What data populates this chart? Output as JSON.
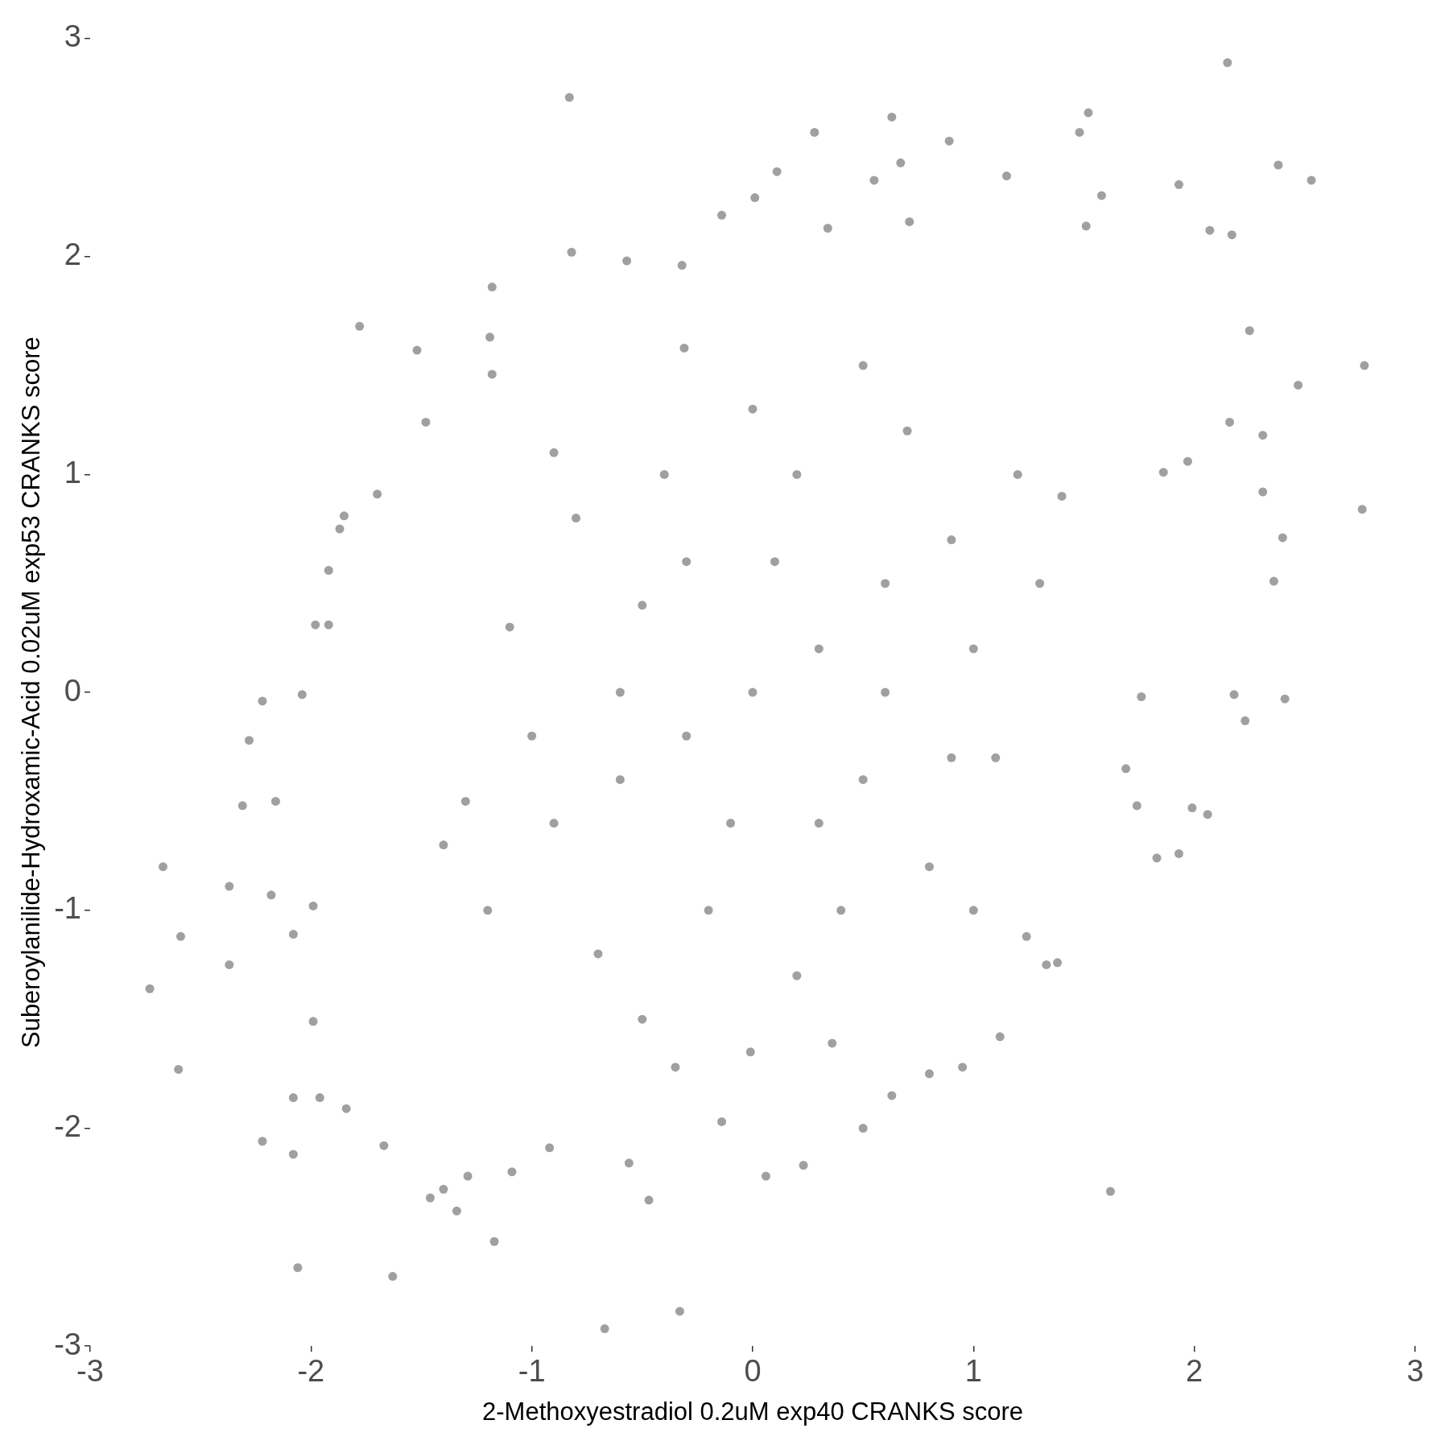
{
  "chart_data": {
    "type": "scatter",
    "xlabel": "2-Methoxyestradiol 0.2uM exp40 CRANKS score",
    "ylabel": "Suberoylanilide-Hydroxamic-Acid 0.02uM exp53 CRANKS score",
    "color": "#a0a0a0",
    "marker": "circle",
    "grid": false,
    "legend": false,
    "xlim": [
      -3,
      3
    ],
    "ylim": [
      -3,
      3
    ],
    "xticks": [
      -3,
      -2,
      -1,
      0,
      1,
      2,
      3
    ],
    "yticks": [
      -3,
      -2,
      -1,
      0,
      1,
      2,
      3
    ],
    "x": [
      2.15,
      -0.83,
      0.63,
      1.52,
      0.28,
      2.38,
      2.53,
      1.93,
      1.15,
      -0.14,
      -1.78,
      -0.82,
      -1.18,
      2.77,
      2.76,
      2.25,
      2.07,
      2.47,
      2.36,
      2.41,
      2.23,
      1.99,
      1.62,
      -0.33,
      -0.67,
      -1.63,
      -2.06,
      -1.17,
      -0.47,
      -1.46,
      0.06,
      0.23,
      0.5,
      -2.73,
      -2.6,
      -2.67,
      -2.59,
      -2.37,
      -2.37,
      -2.22,
      -2.08,
      -1.67,
      -2.28,
      -2.22,
      -2.04,
      -1.92,
      -1.7,
      -1.92,
      1.24,
      1.83,
      1.93,
      2.06,
      2.18,
      2.31,
      2.4,
      2.16,
      2.17,
      0.63,
      1.33,
      1.38,
      1.12,
      0.95,
      0.8,
      -0.14,
      -1.09,
      -0.92,
      -1.4,
      -1.29,
      -0.56,
      -1.34,
      -1.18,
      -1.19,
      -1.52,
      -1.48,
      -1.85,
      -1.87,
      -1.98,
      -2.16,
      -2.31,
      -2.18,
      -1.99,
      -2.08,
      -1.99,
      -2.08,
      -1.96,
      -1.84,
      0.01,
      0.11,
      0.55,
      0.67,
      0.89,
      1.48,
      1.58,
      1.51,
      0.71,
      0.34,
      -0.57,
      -0.32,
      -0.31,
      1.86,
      1.97,
      2.31,
      1.76,
      1.69,
      1.74,
      -0.35,
      -0.01,
      0.36,
      0,
      0.3,
      -0.3,
      0.6,
      -0.6,
      0.9,
      -0.9,
      0.5,
      -0.5,
      1.0,
      -1.0,
      0.2,
      -0.2,
      0.7,
      -0.7,
      1.1,
      -1.1,
      0.4,
      -0.4,
      1.2,
      -1.2,
      0.1,
      -0.1,
      0.8,
      -0.8,
      1.3,
      -1.3,
      0.2,
      0.0,
      0.5,
      -0.5,
      1.4,
      -1.4,
      1.0,
      -0.9,
      0.3,
      -0.3,
      0.6,
      -0.6,
      0.9
    ],
    "values": [
      2.89,
      2.73,
      2.64,
      2.66,
      2.57,
      2.42,
      2.35,
      2.33,
      2.37,
      2.19,
      1.68,
      2.02,
      1.86,
      1.5,
      0.84,
      1.66,
      2.12,
      1.41,
      0.51,
      -0.03,
      -0.13,
      -0.53,
      -2.29,
      -2.84,
      -2.92,
      -2.68,
      -2.64,
      -2.52,
      -2.33,
      -2.32,
      -2.22,
      -2.17,
      -2.0,
      -1.36,
      -1.73,
      -0.8,
      -1.12,
      -1.25,
      -0.89,
      -2.06,
      -2.12,
      -2.08,
      -0.22,
      -0.04,
      -0.01,
      0.56,
      0.91,
      0.31,
      -1.12,
      -0.76,
      -0.74,
      -0.56,
      -0.01,
      0.92,
      0.71,
      1.24,
      2.1,
      -1.85,
      -1.25,
      -1.24,
      -1.58,
      -1.72,
      -1.75,
      -1.97,
      -2.2,
      -2.09,
      -2.28,
      -2.22,
      -2.16,
      -2.38,
      1.46,
      1.63,
      1.57,
      1.24,
      0.81,
      0.75,
      0.31,
      -0.5,
      -0.52,
      -0.93,
      -0.98,
      -1.11,
      -1.51,
      -1.86,
      -1.86,
      -1.91,
      2.27,
      2.39,
      2.35,
      2.43,
      2.53,
      2.57,
      2.28,
      2.14,
      2.16,
      2.13,
      1.98,
      1.96,
      1.58,
      1.01,
      1.06,
      1.18,
      -0.02,
      -0.35,
      -0.52,
      -1.72,
      -1.65,
      -1.61,
      0,
      0.2,
      -0.2,
      0.5,
      -0.4,
      0.7,
      -0.6,
      -0.4,
      0.4,
      0.2,
      -0.2,
      1.0,
      -1.0,
      1.2,
      -1.2,
      -0.3,
      0.3,
      -1.0,
      1.0,
      1.0,
      -1.0,
      0.6,
      -0.6,
      -0.8,
      0.8,
      0.5,
      -0.5,
      -1.3,
      1.3,
      1.5,
      -1.5,
      0.9,
      -0.7,
      -1.0,
      1.1,
      -0.6,
      0.6,
      0.0,
      0.0,
      -0.3
    ]
  }
}
